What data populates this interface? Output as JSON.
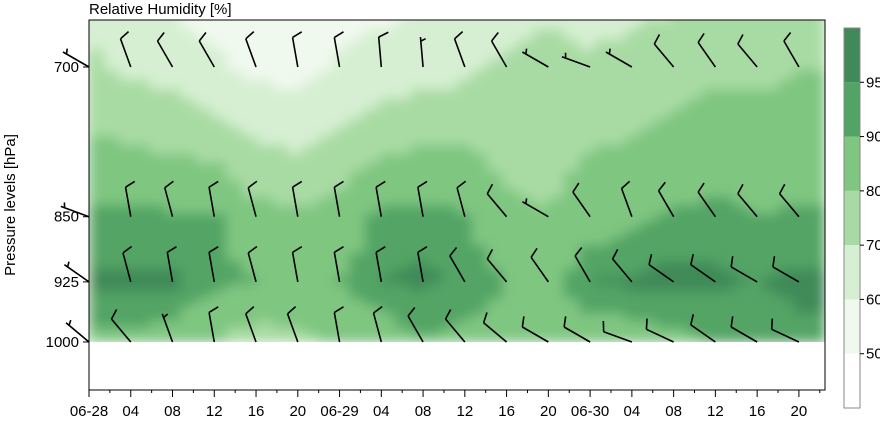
{
  "chart_data": {
    "type": "heatmap",
    "title": "Relative Humidity [%]",
    "ylabel": "Pressure levels [hPa]",
    "xlabel": "",
    "y_ticks": [
      "700",
      "850",
      "925",
      "1000"
    ],
    "y_tick_values": [
      700,
      850,
      925,
      1000
    ],
    "ylim": [
      1050,
      640
    ],
    "x_ticks": [
      "06-28",
      "04",
      "08",
      "12",
      "16",
      "20",
      "06-29",
      "04",
      "08",
      "12",
      "16",
      "20",
      "06-30",
      "04",
      "08",
      "12",
      "16",
      "20"
    ],
    "x_tick_hours": [
      0,
      4,
      8,
      12,
      16,
      20,
      24,
      28,
      32,
      36,
      40,
      44,
      48,
      52,
      56,
      60,
      64,
      68
    ],
    "xlim_hours": [
      0,
      70.5
    ],
    "colorbar": {
      "ticks": [
        "50",
        "60",
        "70",
        "80",
        "90",
        "95"
      ],
      "levels": [
        40,
        50,
        60,
        70,
        80,
        90,
        95,
        100
      ],
      "colors": [
        "#ffffff",
        "#f0f9ee",
        "#d6efd2",
        "#a8dba3",
        "#7fc681",
        "#52a465",
        "#3f8a58"
      ]
    },
    "series": [
      {
        "name": "1000",
        "level": 1000,
        "values": [
          88,
          88,
          87,
          80,
          75,
          78,
          82,
          85,
          90,
          88,
          87,
          86,
          85,
          86,
          88,
          90,
          92,
          94
        ]
      },
      {
        "name": "925",
        "level": 925,
        "values": [
          96,
          96,
          96,
          92,
          90,
          88,
          90,
          95,
          96,
          94,
          90,
          88,
          95,
          96,
          97,
          96,
          95,
          96
        ]
      },
      {
        "name": "850",
        "level": 850,
        "values": [
          92,
          92,
          91,
          91,
          83,
          82,
          84,
          92,
          93,
          91,
          82,
          80,
          86,
          88,
          91,
          92,
          90,
          91
        ]
      },
      {
        "name": "700",
        "level": 700,
        "values": [
          72,
          68,
          66,
          62,
          58,
          56,
          62,
          64,
          66,
          68,
          72,
          74,
          72,
          74,
          76,
          78,
          78,
          80
        ]
      }
    ],
    "wind_barbs": {
      "rows": [
        700,
        850,
        925,
        1000
      ],
      "hours": [
        0,
        4,
        8,
        12,
        16,
        20,
        24,
        28,
        32,
        36,
        40,
        44,
        48,
        52,
        56,
        60,
        64,
        68
      ],
      "direction_deg": [
        [
          300,
          340,
          330,
          330,
          340,
          350,
          350,
          355,
          355,
          340,
          330,
          300,
          290,
          300,
          320,
          325,
          320,
          330
        ],
        [
          290,
          350,
          345,
          350,
          345,
          350,
          350,
          350,
          350,
          345,
          320,
          300,
          325,
          340,
          330,
          325,
          320,
          320
        ],
        [
          305,
          345,
          350,
          350,
          345,
          350,
          350,
          350,
          350,
          330,
          320,
          325,
          330,
          320,
          305,
          305,
          300,
          300
        ],
        [
          310,
          320,
          340,
          350,
          340,
          340,
          350,
          345,
          330,
          320,
          310,
          300,
          300,
          290,
          295,
          305,
          300,
          295
        ]
      ],
      "speed_kt": [
        [
          5,
          10,
          10,
          10,
          10,
          10,
          10,
          10,
          5,
          10,
          10,
          5,
          5,
          5,
          10,
          10,
          10,
          10
        ],
        [
          5,
          10,
          10,
          10,
          10,
          10,
          10,
          10,
          10,
          10,
          10,
          5,
          10,
          10,
          10,
          10,
          10,
          10
        ],
        [
          5,
          10,
          10,
          10,
          10,
          10,
          10,
          10,
          10,
          10,
          10,
          10,
          10,
          10,
          10,
          10,
          10,
          10
        ],
        [
          5,
          10,
          5,
          10,
          10,
          10,
          10,
          10,
          10,
          10,
          10,
          10,
          10,
          10,
          10,
          10,
          10,
          10
        ]
      ]
    }
  }
}
